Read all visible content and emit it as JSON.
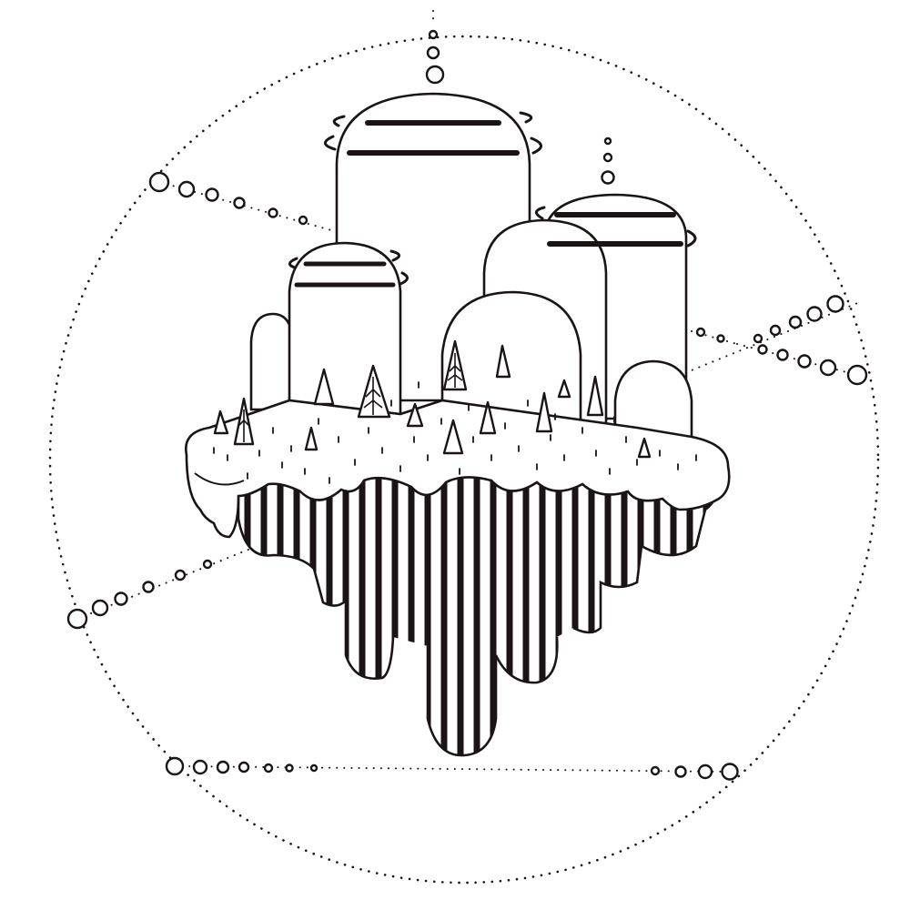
{
  "artwork": {
    "medium": "ink-on-paper",
    "ink_color": "#1a1414",
    "paper_color": "#ffffff",
    "icons": [
      "floating-island-illustration",
      "dome-tower-icon",
      "pine-tree-icon",
      "bead-chain-icon",
      "dotted-circle-frame"
    ]
  }
}
